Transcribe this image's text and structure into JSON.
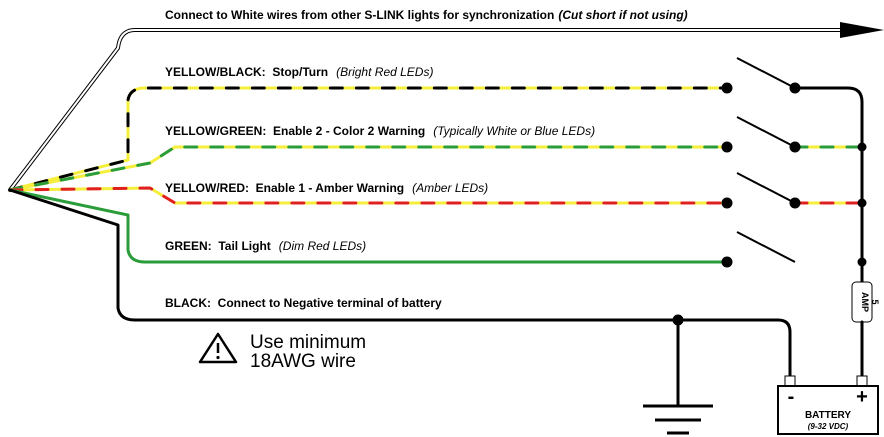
{
  "sync_wire": {
    "label": "Connect to White wires from other S-LINK lights for synchronization",
    "note": "(Cut short if not using)"
  },
  "wires": [
    {
      "label": "YELLOW/BLACK:  Stop/Turn",
      "note": "(Bright Red LEDs)"
    },
    {
      "label": "YELLOW/GREEN:  Enable 2 - Color 2 Warning",
      "note": "(Typically White or Blue LEDs)"
    },
    {
      "label": "YELLOW/RED:  Enable 1 - Amber Warning",
      "note": "(Amber LEDs)"
    },
    {
      "label": "GREEN:  Tail Light",
      "note": "(Dim Red LEDs)"
    }
  ],
  "ground_wire": {
    "label": "BLACK:  Connect to Negative terminal of battery"
  },
  "wire_note": {
    "line1": "Use minimum",
    "line2": "18AWG wire"
  },
  "battery": {
    "label": "BATTERY",
    "voltage": "(9-32 VDC)",
    "negative": "-",
    "positive": "+"
  },
  "fuse": {
    "rating": "5",
    "unit": "AMP"
  }
}
